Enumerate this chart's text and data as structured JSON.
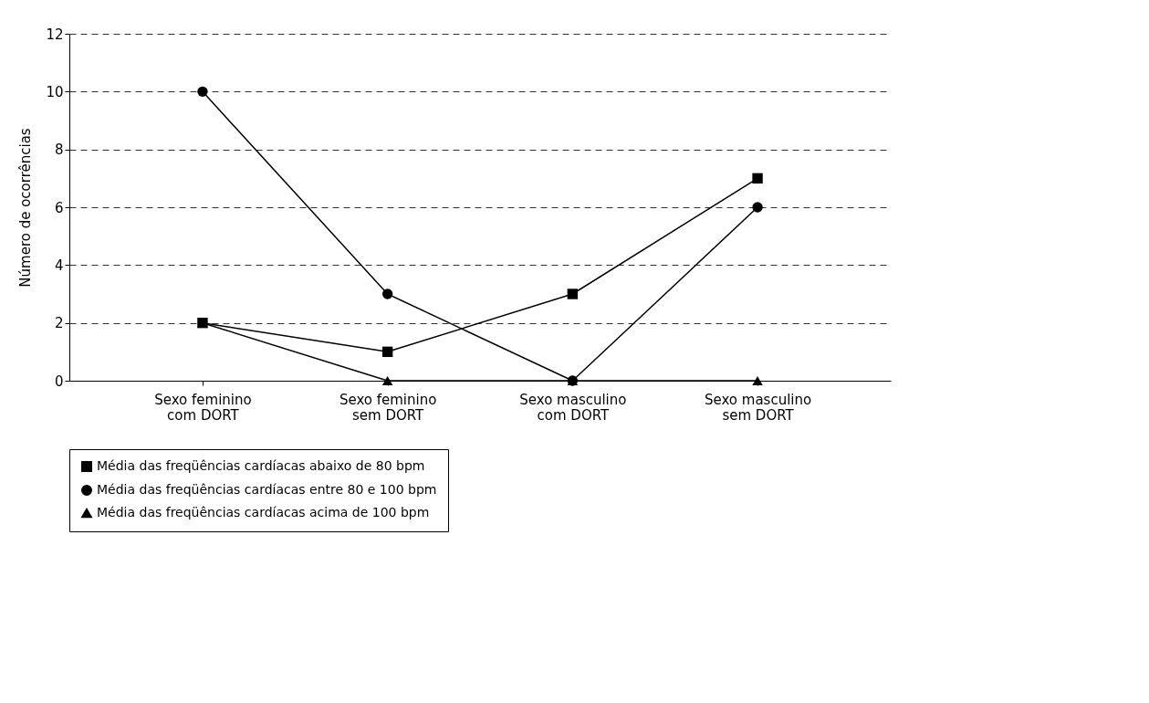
{
  "chart_data": {
    "type": "line",
    "ylabel": "Número de ocorrências",
    "categories": [
      "Sexo feminino\ncom DORT",
      "Sexo feminino\nsem DORT",
      "Sexo masculino\ncom DORT",
      "Sexo masculino\nsem DORT"
    ],
    "series": [
      {
        "name": "Média das freqüências cardíacas abaixo de 80 bpm",
        "color": "#000000",
        "marker": "square",
        "values": [
          2,
          1,
          3,
          7
        ]
      },
      {
        "name": "Média das freqüências cardíacas entre 80 e 100 bpm",
        "color": "#000000",
        "marker": "circle",
        "values": [
          10,
          3,
          0,
          6
        ]
      },
      {
        "name": "Média das freqüências cardíacas acima de 100 bpm",
        "color": "#000000",
        "marker": "triangle",
        "values": [
          2,
          0,
          0,
          0
        ]
      }
    ],
    "ylim": [
      0,
      12
    ],
    "yticks": [
      0,
      2,
      4,
      6,
      8,
      10,
      12
    ],
    "grid": "y",
    "legend": "bottom",
    "line_style": "solid"
  }
}
